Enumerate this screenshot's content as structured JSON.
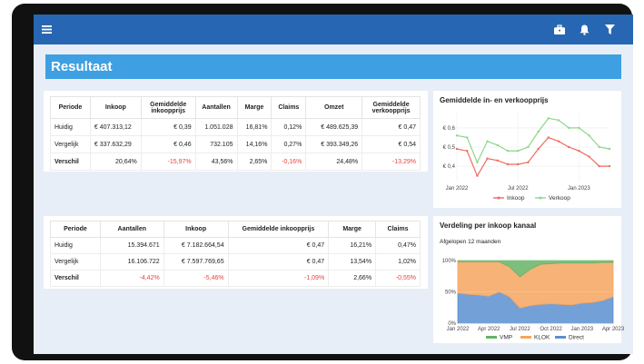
{
  "header": {
    "menu_icon": "hamburger-icon",
    "briefcase_icon": "briefcase-icon",
    "bell_icon": "bell-icon",
    "filter_icon": "filter-icon"
  },
  "page": {
    "title": "Resultaat"
  },
  "table1": {
    "headers": [
      "Periode",
      "Inkoop",
      "Gemiddelde inkoopprijs",
      "Aantallen",
      "Marge",
      "Claims",
      "Omzet",
      "Gemiddelde verkoopprijs"
    ],
    "rows": [
      [
        "Huidig",
        "€ 407.313,12",
        "€ 0,39",
        "1.051.028",
        "16,81%",
        "0,12%",
        "€ 489.625,39",
        "€ 0,47"
      ],
      [
        "Vergelijk",
        "€ 337.632,29",
        "€ 0,46",
        "732.105",
        "14,16%",
        "0,27%",
        "€ 393.349,26",
        "€ 0,54"
      ],
      [
        "Verschil",
        "20,64%",
        "-15,97%",
        "43,56%",
        "2,65%",
        "-0,16%",
        "24,48%",
        "-13,29%"
      ]
    ]
  },
  "table2": {
    "headers": [
      "Periode",
      "Aantallen",
      "Inkoop",
      "Gemiddelde inkoopprijs",
      "Marge",
      "Claims"
    ],
    "rows": [
      [
        "Huidig",
        "15.394.671",
        "€ 7.182.664,54",
        "€ 0,47",
        "16,21%",
        "0,47%"
      ],
      [
        "Vergelijk",
        "16.106.722",
        "€ 7.597.769,65",
        "€ 0,47",
        "13,54%",
        "1,02%"
      ],
      [
        "Verschil",
        "-4,42%",
        "-5,46%",
        "-1,09%",
        "2,66%",
        "-0,55%"
      ]
    ]
  },
  "chart_data": [
    {
      "type": "line",
      "title": "Gemiddelde in- en verkoopprijs",
      "x_ticks": [
        "Jan 2022",
        "Jul 2022",
        "Jan 2023"
      ],
      "y_ticks": [
        "€ 0,4",
        "€ 0,5",
        "€ 0,6"
      ],
      "ylim": [
        0.32,
        0.68
      ],
      "x": [
        "2022-01",
        "2022-02",
        "2022-03",
        "2022-04",
        "2022-05",
        "2022-06",
        "2022-07",
        "2022-08",
        "2022-09",
        "2022-10",
        "2022-11",
        "2022-12",
        "2023-01",
        "2023-02",
        "2023-03",
        "2023-04"
      ],
      "series": [
        {
          "name": "Inkoop",
          "color": "#f06a5f",
          "values": [
            0.49,
            0.48,
            0.35,
            0.44,
            0.43,
            0.41,
            0.41,
            0.42,
            0.49,
            0.55,
            0.53,
            0.5,
            0.48,
            0.45,
            0.4,
            0.4
          ]
        },
        {
          "name": "Verkoop",
          "color": "#8bd88b",
          "values": [
            0.56,
            0.55,
            0.42,
            0.53,
            0.51,
            0.48,
            0.48,
            0.5,
            0.58,
            0.65,
            0.64,
            0.6,
            0.6,
            0.56,
            0.5,
            0.49
          ]
        }
      ],
      "legend": "bottom"
    },
    {
      "type": "area",
      "title": "Verdeling per inkoop kanaal",
      "subtitle": "Afgelopen 12 maanden",
      "stacked": "percent",
      "x_ticks": [
        "Jan 2022",
        "Apr 2022",
        "Jul 2022",
        "Oct 2022",
        "Jan 2023",
        "Apr 2023"
      ],
      "y_ticks": [
        "0%",
        "50%",
        "100%"
      ],
      "x": [
        "2022-01",
        "2022-02",
        "2022-03",
        "2022-04",
        "2022-05",
        "2022-06",
        "2022-07",
        "2022-08",
        "2022-09",
        "2022-10",
        "2022-11",
        "2022-12",
        "2023-01",
        "2023-02",
        "2023-03",
        "2023-04"
      ],
      "series": [
        {
          "name": "Direct",
          "color": "#5b8fcf",
          "values": [
            0.48,
            0.46,
            0.45,
            0.43,
            0.5,
            0.42,
            0.24,
            0.28,
            0.3,
            0.31,
            0.3,
            0.29,
            0.32,
            0.33,
            0.36,
            0.42
          ]
        },
        {
          "name": "KLOK",
          "color": "#f5a55f",
          "values": [
            0.5,
            0.52,
            0.53,
            0.55,
            0.48,
            0.48,
            0.5,
            0.58,
            0.64,
            0.64,
            0.66,
            0.67,
            0.64,
            0.63,
            0.61,
            0.55
          ]
        },
        {
          "name": "VMP",
          "color": "#66b366",
          "values": [
            0.02,
            0.02,
            0.02,
            0.02,
            0.02,
            0.1,
            0.26,
            0.14,
            0.06,
            0.05,
            0.04,
            0.04,
            0.04,
            0.04,
            0.03,
            0.03
          ]
        }
      ],
      "legend_order": [
        "VMP",
        "KLOK",
        "Direct"
      ],
      "legend": "bottom"
    }
  ]
}
